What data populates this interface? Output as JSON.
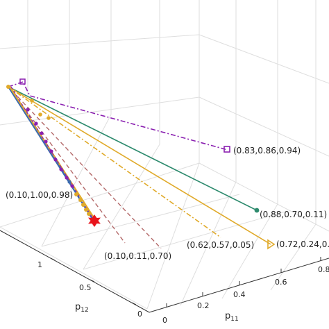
{
  "chart_data": {
    "type": "line",
    "projection": "3d",
    "xlabel": "p11",
    "ylabel": "p12",
    "grid": true,
    "x_ticks": [
      "0",
      "0.2",
      "0.4",
      "0.6",
      "0.8"
    ],
    "y_ticks": [
      "0",
      "0.5",
      "1"
    ],
    "colors": {
      "teal": "#2e8b6e",
      "gold": "#e0aa2a",
      "purple": "#8a1fb0",
      "dashed_red": "#b46a6a",
      "blue": "#3b6bb0",
      "star": "#e8141c",
      "grid": "#dedede",
      "axis": "#333333"
    },
    "start_marker_label": "",
    "end_marker": "red-star",
    "point_labels": [
      {
        "text": "(0.83,0.86,0.94)",
        "series": "purple-dashdot"
      },
      {
        "text": "(0.10,1.00,0.98)",
        "series": "blue-solid"
      },
      {
        "text": "(0.88,0.70,0.11)",
        "series": "teal-solid"
      },
      {
        "text": "(0.62,0.57,0.05)",
        "series": "gold-dashdot"
      },
      {
        "text": "(0.72,0.24,0.",
        "series": "gold-solid"
      },
      {
        "text": "(0.10,0.11,0.70)",
        "series": "red-dashed"
      }
    ]
  }
}
